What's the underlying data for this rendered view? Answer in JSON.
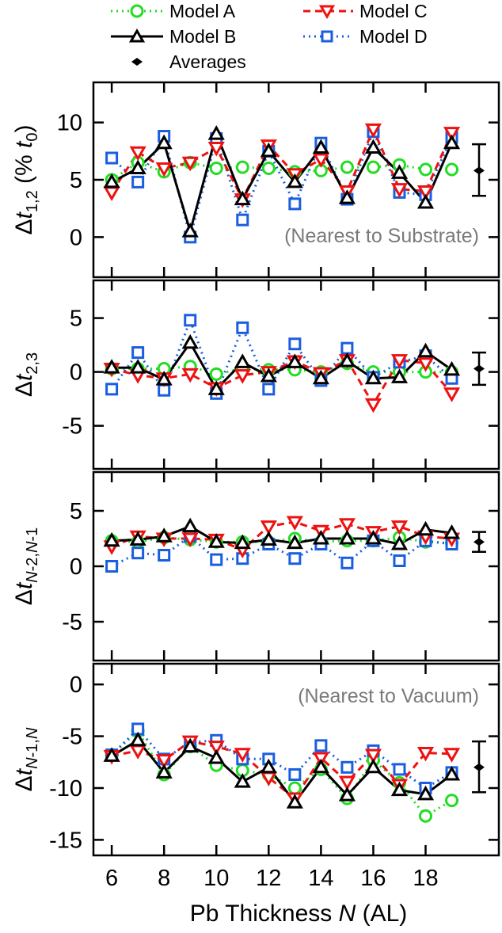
{
  "chart_data": {
    "type": "line",
    "xlabel": "Pb Thickness N (AL)",
    "x_ticks": [
      6,
      8,
      10,
      12,
      14,
      16,
      18
    ],
    "x": [
      6,
      7,
      8,
      9,
      10,
      11,
      12,
      13,
      14,
      15,
      16,
      17,
      18,
      19
    ],
    "xlim": [
      5.3,
      20.8
    ],
    "legend": {
      "placement": "top",
      "entries": [
        {
          "label": "Model A",
          "series": "Model A"
        },
        {
          "label": "Model C",
          "series": "Model C"
        },
        {
          "label": "Model B",
          "series": "Model B"
        },
        {
          "label": "Model D",
          "series": "Model D"
        },
        {
          "label": "Averages",
          "series": "Averages"
        }
      ]
    },
    "series_style": {
      "Model A": {
        "color": "#22dd22",
        "marker": "circle",
        "dash": "2,5"
      },
      "Model B": {
        "color": "#000000",
        "marker": "triangle-up",
        "dash": ""
      },
      "Model C": {
        "color": "#ee1111",
        "marker": "triangle-down",
        "dash": "9,6"
      },
      "Model D": {
        "color": "#1a5ee0",
        "marker": "square",
        "dash": "2,5"
      }
    },
    "panels": [
      {
        "ylabel": "Δt1,2 (% t0)",
        "ylim": [
          -3.5,
          13.5
        ],
        "y_ticks": [
          0,
          5,
          10
        ],
        "annotation": "(Nearest to Substrate)",
        "series": [
          {
            "name": "Model A",
            "values": [
              5.0,
              6.5,
              5.7,
              6.5,
              6.0,
              6.1,
              6.0,
              5.7,
              5.8,
              6.1,
              6.1,
              6.3,
              5.9,
              5.9
            ]
          },
          {
            "name": "Model B",
            "values": [
              4.8,
              6.0,
              8.2,
              0.5,
              9.0,
              3.3,
              7.5,
              4.8,
              7.8,
              3.4,
              7.8,
              5.6,
              3.0,
              8.2
            ]
          },
          {
            "name": "Model C",
            "values": [
              3.9,
              7.4,
              6.0,
              6.5,
              7.8,
              3.3,
              8.0,
              5.5,
              6.8,
              4.0,
              9.4,
              4.2,
              4.0,
              9.1
            ]
          },
          {
            "name": "Model D",
            "values": [
              6.9,
              4.8,
              8.8,
              0.0,
              8.6,
              1.5,
              7.5,
              2.9,
              8.2,
              3.3,
              9.2,
              3.9,
              3.7,
              8.7
            ]
          }
        ],
        "average": {
          "value": 5.8,
          "low": 3.6,
          "high": 8.1
        }
      },
      {
        "ylabel": "Δt2,3",
        "ylim": [
          -9,
          8.5
        ],
        "y_ticks": [
          -5,
          0,
          5
        ],
        "series": [
          {
            "name": "Model A",
            "values": [
              0.3,
              0.3,
              0.3,
              0.5,
              -0.2,
              0.3,
              0.2,
              0.2,
              0.0,
              0.8,
              0.0,
              0.0,
              0.0,
              0.0
            ]
          },
          {
            "name": "Model B",
            "values": [
              0.4,
              0.4,
              -0.7,
              2.7,
              -1.6,
              0.9,
              -0.4,
              0.9,
              -0.6,
              1.0,
              -0.6,
              -0.5,
              1.9,
              0.2
            ]
          },
          {
            "name": "Model C",
            "values": [
              0.3,
              -0.3,
              -0.6,
              -0.2,
              -1.5,
              -0.3,
              0.0,
              1.0,
              -0.1,
              1.1,
              -3.0,
              1.1,
              0.8,
              -2.0
            ]
          },
          {
            "name": "Model D",
            "values": [
              -1.6,
              1.8,
              -1.7,
              4.8,
              -2.0,
              4.1,
              -1.6,
              2.6,
              -0.8,
              2.2,
              -0.5,
              0.9,
              1.5,
              -0.6
            ]
          }
        ],
        "average": {
          "value": 0.3,
          "low": -1.2,
          "high": 1.8
        }
      },
      {
        "ylabel": "ΔtN-2,N-1",
        "ylim": [
          -8.5,
          8.5
        ],
        "y_ticks": [
          -5,
          0,
          5
        ],
        "series": [
          {
            "name": "Model A",
            "values": [
              2.3,
              2.2,
              2.6,
              2.4,
              2.2,
              2.2,
              2.2,
              2.5,
              2.2,
              2.3,
              2.3,
              2.6,
              2.2,
              2.1
            ]
          },
          {
            "name": "Model B",
            "values": [
              2.3,
              2.4,
              2.7,
              3.6,
              2.2,
              2.1,
              2.4,
              2.1,
              2.5,
              2.5,
              2.5,
              2.0,
              3.3,
              3.0
            ]
          },
          {
            "name": "Model C",
            "values": [
              1.8,
              2.7,
              2.5,
              2.5,
              2.4,
              1.5,
              3.6,
              4.0,
              3.2,
              3.8,
              3.1,
              3.6,
              2.7,
              2.5
            ]
          },
          {
            "name": "Model D",
            "values": [
              0.0,
              1.2,
              1.0,
              2.7,
              0.6,
              0.7,
              2.0,
              0.7,
              2.0,
              0.3,
              2.3,
              0.5,
              2.3,
              2.0
            ]
          }
        ],
        "average": {
          "value": 2.2,
          "low": 1.3,
          "high": 3.1
        }
      },
      {
        "ylabel": "ΔtN-1,N",
        "ylim": [
          -16.5,
          2
        ],
        "y_ticks": [
          -15,
          -10,
          -5,
          0
        ],
        "annotation": "(Nearest to Vacuum)",
        "series": [
          {
            "name": "Model A",
            "values": [
              -6.8,
              -4.5,
              -8.7,
              -6.0,
              -7.8,
              -8.3,
              -8.7,
              -10.0,
              -8.2,
              -11.0,
              -7.3,
              -9.5,
              -12.7,
              -11.2
            ]
          },
          {
            "name": "Model B",
            "values": [
              -6.9,
              -5.4,
              -8.5,
              -6.0,
              -7.1,
              -9.4,
              -8.0,
              -11.4,
              -8.0,
              -10.7,
              -8.0,
              -10.2,
              -10.6,
              -8.7
            ]
          },
          {
            "name": "Model C",
            "values": [
              -6.9,
              -6.4,
              -7.3,
              -5.5,
              -6.0,
              -6.7,
              -9.0,
              -11.0,
              -7.1,
              -9.4,
              -6.8,
              -9.7,
              -6.6,
              -6.7
            ]
          },
          {
            "name": "Model D",
            "values": [
              -6.8,
              -4.3,
              -7.2,
              -5.6,
              -5.4,
              -7.2,
              -7.2,
              -8.7,
              -5.9,
              -8.0,
              -6.4,
              -8.2,
              -10.0,
              -8.5
            ]
          }
        ],
        "average": {
          "value": -8.0,
          "low": -10.4,
          "high": -5.5
        }
      }
    ]
  }
}
